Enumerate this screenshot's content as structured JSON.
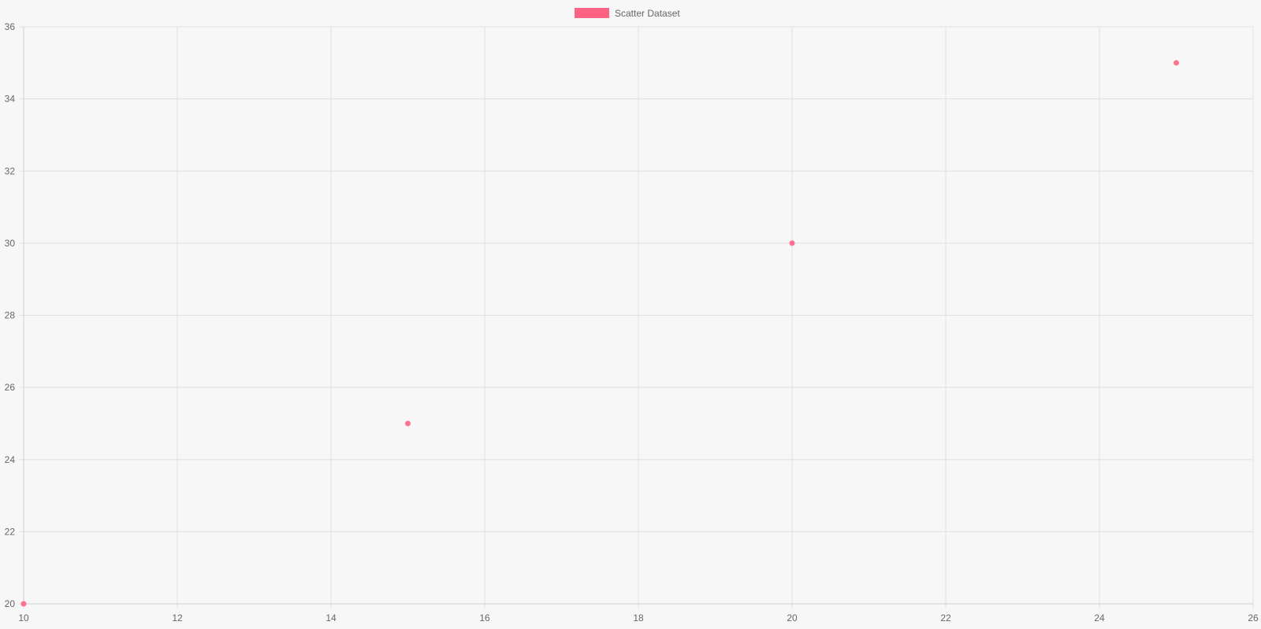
{
  "chart_data": {
    "type": "scatter",
    "title": "",
    "xlabel": "",
    "ylabel": "",
    "xlim": [
      10,
      26
    ],
    "ylim": [
      20,
      36
    ],
    "x_ticks": [
      10,
      12,
      14,
      16,
      18,
      20,
      22,
      24,
      26
    ],
    "y_ticks": [
      20,
      22,
      24,
      26,
      28,
      30,
      32,
      34,
      36
    ],
    "x_tick_labels": [
      "10",
      "12",
      "14",
      "16",
      "18",
      "20",
      "22",
      "24",
      "26"
    ],
    "y_tick_labels": [
      "20",
      "22",
      "24",
      "26",
      "28",
      "30",
      "32",
      "34",
      "36"
    ],
    "grid": true,
    "legend": {
      "position": "top-center",
      "entries": [
        {
          "label": "Scatter Dataset",
          "color": "#ff6384"
        }
      ]
    },
    "series": [
      {
        "name": "Scatter Dataset",
        "color": "#ff6384",
        "points": [
          {
            "x": 10,
            "y": 20
          },
          {
            "x": 15,
            "y": 25
          },
          {
            "x": 20,
            "y": 30
          },
          {
            "x": 25,
            "y": 35
          }
        ]
      }
    ]
  },
  "colors": {
    "background": "#f7f7f7",
    "grid": "#e0e0e0",
    "axis": "#cfcfcf",
    "tick_text": "#666666",
    "point": "#ff6384"
  }
}
